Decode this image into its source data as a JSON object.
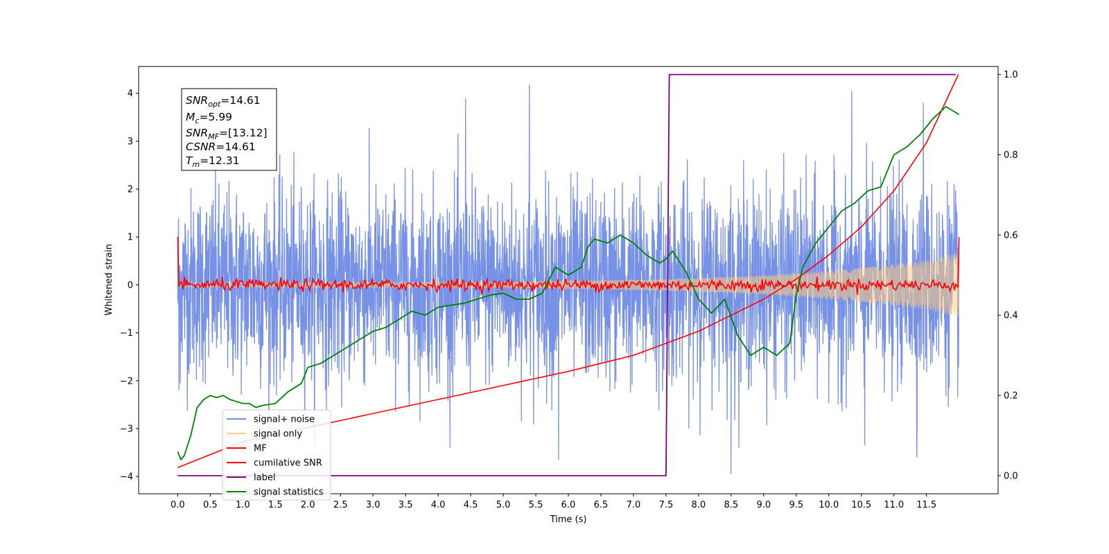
{
  "chart_data": {
    "type": "line",
    "xlabel": "Time (s)",
    "ylabel": "Whitened strain",
    "xlim": [
      -0.6,
      12.6
    ],
    "ylim": [
      -4.36,
      4.56
    ],
    "y2lim": [
      -0.045,
      1.02
    ],
    "xticks": [
      "0.0",
      "0.5",
      "1.0",
      "1.5",
      "2.0",
      "2.5",
      "3.0",
      "3.5",
      "4.0",
      "4.5",
      "5.0",
      "5.5",
      "6.0",
      "6.5",
      "7.0",
      "7.5",
      "8.0",
      "8.5",
      "9.0",
      "9.5",
      "10.0",
      "10.5",
      "11.0",
      "11.5"
    ],
    "yticks": [
      "4",
      "3",
      "2",
      "1",
      "0",
      "−1",
      "−2",
      "−3",
      "−4"
    ],
    "y2ticks": [
      "1.0",
      "0.8",
      "0.6",
      "0.4",
      "0.2",
      "0.0"
    ],
    "annotation": {
      "snr_opt": {
        "label": "SNR",
        "sub": "opt",
        "value": "=14.61"
      },
      "mc": {
        "label": "M",
        "sub": "c",
        "value": "=5.99"
      },
      "snr_mf": {
        "label": "SNR",
        "sub": "MF",
        "value": "=[13.12]"
      },
      "csnr": {
        "label": "CSNR",
        "sub": "",
        "value": "=14.61"
      },
      "tm": {
        "label": "T",
        "sub": "m",
        "value": "=12.31"
      }
    },
    "legend": {
      "placement": "lower-left",
      "entries": [
        {
          "label": "signal+ noise",
          "color": "#6f8be5"
        },
        {
          "label": "signal only",
          "color": "#ffcc80"
        },
        {
          "label": "MF",
          "color": "#ff0000"
        },
        {
          "label": "cumilative SNR",
          "color": "#ff0000"
        },
        {
          "label": "label",
          "color": "#800080"
        },
        {
          "label": "signal statistics",
          "color": "#008000"
        }
      ]
    },
    "series": [
      {
        "name": "signal+ noise",
        "axis": "left",
        "color": "#6f8be5",
        "description": "gaussian noise band approx ±2.3 with peaks to ±4.2",
        "x_range": [
          0.0,
          12.0
        ],
        "peaks": [
          {
            "x": 5.4,
            "y": 4.18
          },
          {
            "x": 4.42,
            "y": 3.9
          },
          {
            "x": 10.35,
            "y": 4.05
          },
          {
            "x": 11.45,
            "y": 3.8
          },
          {
            "x": 8.5,
            "y": -3.95
          },
          {
            "x": 5.85,
            "y": -3.65
          },
          {
            "x": 11.35,
            "y": -3.6
          },
          {
            "x": 10.55,
            "y": -3.35
          },
          {
            "x": 0.02,
            "y": -2.2
          }
        ]
      },
      {
        "name": "signal only",
        "axis": "left",
        "color": "#ffcc80",
        "description": "chirp envelope growing toward merger",
        "envelope": [
          [
            0.0,
            0.05
          ],
          [
            5.0,
            0.06
          ],
          [
            7.5,
            0.12
          ],
          [
            9.0,
            0.2
          ],
          [
            10.5,
            0.35
          ],
          [
            11.5,
            0.52
          ],
          [
            12.0,
            0.68
          ]
        ]
      },
      {
        "name": "MF",
        "axis": "left",
        "color": "#ff0000",
        "description": "matched filter output near zero with spikes at the edges",
        "edge_values": {
          "start": 1.0,
          "end": 1.0,
          "noise_amp": 0.1
        }
      },
      {
        "name": "cumilative SNR",
        "axis": "right",
        "color": "#ff0000",
        "points": [
          [
            0.0,
            0.02
          ],
          [
            1.0,
            0.085
          ],
          [
            2.0,
            0.12
          ],
          [
            3.0,
            0.155
          ],
          [
            4.0,
            0.19
          ],
          [
            5.0,
            0.225
          ],
          [
            6.0,
            0.26
          ],
          [
            7.0,
            0.3
          ],
          [
            7.5,
            0.33
          ],
          [
            8.0,
            0.36
          ],
          [
            8.5,
            0.4
          ],
          [
            9.0,
            0.44
          ],
          [
            9.5,
            0.49
          ],
          [
            10.0,
            0.55
          ],
          [
            10.5,
            0.62
          ],
          [
            11.0,
            0.71
          ],
          [
            11.5,
            0.83
          ],
          [
            11.99,
            1.0
          ]
        ]
      },
      {
        "name": "label",
        "axis": "right",
        "color": "#800080",
        "points": [
          [
            0.0,
            0.0
          ],
          [
            7.5,
            0.0
          ],
          [
            7.55,
            1.0
          ],
          [
            11.95,
            1.0
          ]
        ]
      },
      {
        "name": "signal statistics",
        "axis": "right",
        "color": "#008000",
        "points": [
          [
            0.0,
            0.06
          ],
          [
            0.05,
            0.04
          ],
          [
            0.1,
            0.05
          ],
          [
            0.2,
            0.1
          ],
          [
            0.3,
            0.17
          ],
          [
            0.4,
            0.19
          ],
          [
            0.5,
            0.2
          ],
          [
            0.6,
            0.195
          ],
          [
            0.7,
            0.2
          ],
          [
            0.8,
            0.19
          ],
          [
            0.9,
            0.185
          ],
          [
            1.0,
            0.18
          ],
          [
            1.1,
            0.18
          ],
          [
            1.2,
            0.17
          ],
          [
            1.3,
            0.175
          ],
          [
            1.5,
            0.18
          ],
          [
            1.7,
            0.21
          ],
          [
            1.9,
            0.23
          ],
          [
            2.0,
            0.27
          ],
          [
            2.2,
            0.28
          ],
          [
            2.4,
            0.3
          ],
          [
            2.6,
            0.32
          ],
          [
            2.8,
            0.34
          ],
          [
            3.0,
            0.36
          ],
          [
            3.2,
            0.37
          ],
          [
            3.4,
            0.39
          ],
          [
            3.6,
            0.41
          ],
          [
            3.8,
            0.4
          ],
          [
            4.0,
            0.42
          ],
          [
            4.2,
            0.425
          ],
          [
            4.4,
            0.43
          ],
          [
            4.6,
            0.44
          ],
          [
            4.8,
            0.45
          ],
          [
            5.0,
            0.455
          ],
          [
            5.2,
            0.44
          ],
          [
            5.4,
            0.44
          ],
          [
            5.6,
            0.455
          ],
          [
            5.8,
            0.52
          ],
          [
            6.0,
            0.5
          ],
          [
            6.2,
            0.52
          ],
          [
            6.3,
            0.57
          ],
          [
            6.4,
            0.59
          ],
          [
            6.6,
            0.58
          ],
          [
            6.8,
            0.6
          ],
          [
            7.0,
            0.58
          ],
          [
            7.2,
            0.55
          ],
          [
            7.4,
            0.53
          ],
          [
            7.5,
            0.54
          ],
          [
            7.6,
            0.56
          ],
          [
            7.8,
            0.51
          ],
          [
            8.0,
            0.44
          ],
          [
            8.2,
            0.405
          ],
          [
            8.4,
            0.44
          ],
          [
            8.6,
            0.35
          ],
          [
            8.8,
            0.3
          ],
          [
            9.0,
            0.32
          ],
          [
            9.2,
            0.3
          ],
          [
            9.4,
            0.33
          ],
          [
            9.5,
            0.45
          ],
          [
            9.6,
            0.52
          ],
          [
            9.8,
            0.58
          ],
          [
            10.0,
            0.62
          ],
          [
            10.2,
            0.66
          ],
          [
            10.4,
            0.68
          ],
          [
            10.6,
            0.71
          ],
          [
            10.8,
            0.72
          ],
          [
            11.0,
            0.8
          ],
          [
            11.2,
            0.82
          ],
          [
            11.4,
            0.85
          ],
          [
            11.6,
            0.89
          ],
          [
            11.8,
            0.92
          ],
          [
            12.0,
            0.9
          ]
        ]
      }
    ]
  }
}
